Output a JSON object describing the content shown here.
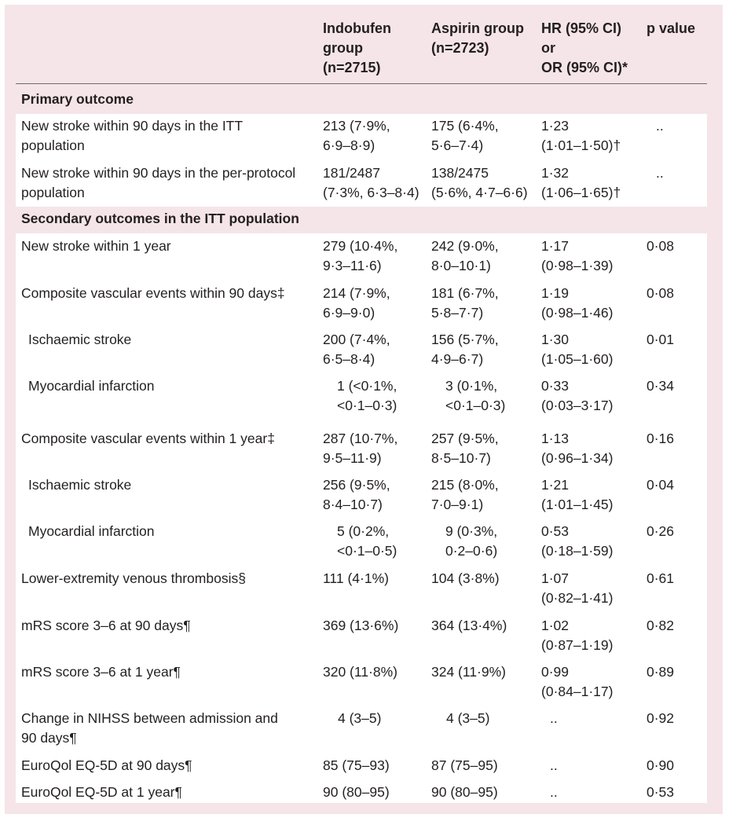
{
  "columns": {
    "outcome": "",
    "indobufen": [
      "Indobufen",
      "group",
      "(n=2715)"
    ],
    "aspirin": [
      "Aspirin group",
      "(n=2723)"
    ],
    "hr": [
      "HR (95% CI)",
      "or",
      "OR (95% CI)*"
    ],
    "p": "p value"
  },
  "sections": [
    {
      "title": "Primary outcome",
      "rows": [
        {
          "label": [
            "New stroke within 90 days in the ITT",
            "population"
          ],
          "indo": [
            "213 (7·9%,",
            "6·9–8·9)"
          ],
          "asp": [
            "175 (6·4%,",
            "5·6–7·4)"
          ],
          "hr": [
            "1·23",
            "(1·01–1·50)†"
          ],
          "p": ".."
        },
        {
          "label": [
            "New stroke within 90 days in the per-protocol",
            "population"
          ],
          "indo": [
            "181/2487",
            "(7·3%, 6·3–8·4)"
          ],
          "asp": [
            "138/2475",
            "(5·6%, 4·7–6·6)"
          ],
          "hr": [
            "1·32",
            "(1·06–1·65)†"
          ],
          "p": ".."
        }
      ]
    },
    {
      "title": "Secondary outcomes in the ITT population",
      "rows": [
        {
          "label": [
            "New stroke within 1 year"
          ],
          "indo": [
            "279 (10·4%,",
            "9·3–11·6)"
          ],
          "asp": [
            "242 (9·0%,",
            "8·0–10·1)"
          ],
          "hr": [
            "1·17",
            "(0·98–1·39)"
          ],
          "p": "0·08"
        },
        {
          "label": [
            "Composite vascular events within 90 days‡"
          ],
          "indo": [
            "214 (7·9%,",
            "6·9–9·0)"
          ],
          "asp": [
            "181 (6·7%,",
            "5·8–7·7)"
          ],
          "hr": [
            "1·19",
            "(0·98–1·46)"
          ],
          "p": "0·08"
        },
        {
          "label": [
            "Ischaemic stroke"
          ],
          "indent": true,
          "indo": [
            "200 (7·4%,",
            "6·5–8·4)"
          ],
          "asp": [
            "156 (5·7%,",
            "4·9–6·7)"
          ],
          "hr": [
            "1·30",
            "(1·05–1·60)"
          ],
          "p": "0·01"
        },
        {
          "label": [
            "Myocardial infarction"
          ],
          "indent": true,
          "indo": [
            "1 (<0·1%,",
            "<0·1–0·3)"
          ],
          "asp": [
            "3 (0·1%,",
            "<0·1–0·3)"
          ],
          "hr": [
            "0·33",
            "(0·03–3·17)"
          ],
          "p": "0·34"
        },
        {
          "label": [
            "Composite vascular events within 1 year‡"
          ],
          "indo": [
            "287 (10·7%,",
            "9·5–11·9)"
          ],
          "asp": [
            "257 (9·5%,",
            "8·5–10·7)"
          ],
          "hr": [
            "1·13",
            "(0·96–1·34)"
          ],
          "p": "0·16"
        },
        {
          "label": [
            "Ischaemic stroke"
          ],
          "indent": true,
          "indo": [
            "256 (9·5%,",
            "8·4–10·7)"
          ],
          "asp": [
            "215 (8·0%,",
            "7·0–9·1)"
          ],
          "hr": [
            "1·21",
            "(1·01–1·45)"
          ],
          "p": "0·04"
        },
        {
          "label": [
            "Myocardial infarction"
          ],
          "indent": true,
          "indo": [
            "5 (0·2%,",
            "<0·1–0·5)"
          ],
          "asp": [
            "9 (0·3%,",
            "0·2–0·6)"
          ],
          "hr": [
            "0·53",
            "(0·18–1·59)"
          ],
          "p": "0·26"
        },
        {
          "label": [
            "Lower-extremity venous thrombosis§"
          ],
          "indo": [
            "111 (4·1%)"
          ],
          "asp": [
            "104 (3·8%)"
          ],
          "hr": [
            "1·07",
            "(0·82–1·41)"
          ],
          "p": "0·61"
        },
        {
          "label": [
            "mRS score 3–6 at 90 days¶"
          ],
          "indo": [
            "369 (13·6%)"
          ],
          "asp": [
            "364 (13·4%)"
          ],
          "hr": [
            "1·02",
            "(0·87–1·19)"
          ],
          "p": "0·82"
        },
        {
          "label": [
            "mRS score 3–6 at 1 year¶"
          ],
          "indo": [
            "320 (11·8%)"
          ],
          "asp": [
            "324 (11·9%)"
          ],
          "hr": [
            "0·99",
            "(0·84–1·17)"
          ],
          "p": "0·89"
        },
        {
          "label": [
            "Change in NIHSS between admission and",
            "90 days¶"
          ],
          "indo": [
            "4 (3–5)"
          ],
          "asp": [
            "4 (3–5)"
          ],
          "hr": [
            ".."
          ],
          "p": "0·92"
        },
        {
          "label": [
            "EuroQol EQ-5D at 90 days¶"
          ],
          "indo": [
            "85 (75–93)"
          ],
          "asp": [
            "87 (75–95)"
          ],
          "hr": [
            ".."
          ],
          "p": "0·90"
        },
        {
          "label": [
            "EuroQol EQ-5D at 1 year¶"
          ],
          "indo": [
            "90 (80–95)"
          ],
          "asp": [
            "90 (80–95)"
          ],
          "hr": [
            ".."
          ],
          "p": "0·53"
        }
      ]
    }
  ]
}
